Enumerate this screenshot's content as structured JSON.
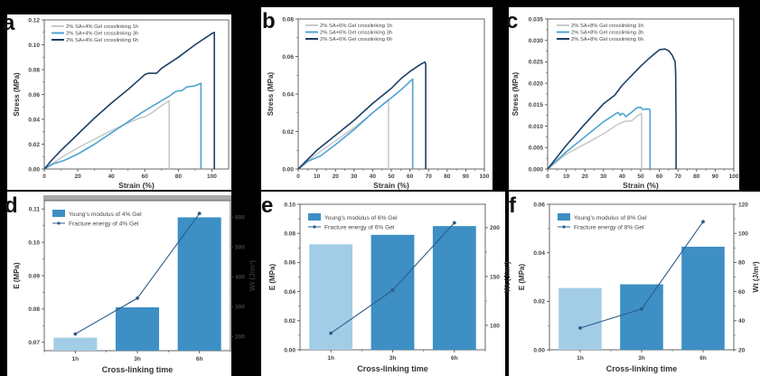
{
  "figure": {
    "panels": [
      "a",
      "b",
      "c",
      "d",
      "e",
      "f"
    ]
  },
  "colors": {
    "h1": "#c8cbcd",
    "h3": "#4ea3d0",
    "h6": "#1e3f66",
    "bar_light": "#a3cde6",
    "bar_dark": "#3d8fc4",
    "wt_line": "#2c5d8a",
    "axis": "#555555"
  },
  "chart_data": [
    {
      "panel": "a",
      "type": "line",
      "xlabel": "Strain (%)",
      "ylabel": "Stress (MPa)",
      "xlim": [
        0,
        110
      ],
      "ylim": [
        0,
        0.12
      ],
      "xticks": [
        0,
        20,
        40,
        60,
        80,
        100
      ],
      "yticks": [
        0.0,
        0.02,
        0.04,
        0.06,
        0.08,
        0.1,
        0.12
      ],
      "ytick_labels": [
        "0.00",
        "0.02",
        "0.04",
        "0.06",
        "0.08",
        "0.10",
        "0.12"
      ],
      "legend": "top-left",
      "series": [
        {
          "name": "2% SA+4% Gel crosslinking 1h",
          "key": "h1",
          "x": [
            0,
            10,
            20,
            30,
            40,
            50,
            57,
            60,
            65,
            70,
            74.5,
            74.5
          ],
          "y": [
            0,
            0.009,
            0.017,
            0.024,
            0.031,
            0.037,
            0.041,
            0.042,
            0.046,
            0.051,
            0.055,
            0
          ]
        },
        {
          "name": "2% SA+4% Gel crosslinking 3h",
          "key": "h3",
          "x": [
            0,
            5,
            12,
            20,
            30,
            40,
            50,
            60,
            70,
            75,
            78,
            80,
            82,
            85,
            90,
            93.5,
            93.5
          ],
          "y": [
            0,
            0.004,
            0.007,
            0.012,
            0.02,
            0.029,
            0.038,
            0.047,
            0.055,
            0.059,
            0.062,
            0.063,
            0.063,
            0.066,
            0.067,
            0.069,
            0
          ]
        },
        {
          "name": "2% SA+4% Gel crosslinking 6h",
          "key": "h6",
          "x": [
            0,
            5,
            10,
            20,
            30,
            40,
            50,
            55,
            60,
            62,
            67,
            70,
            80,
            90,
            100,
            101.5,
            101.5
          ],
          "y": [
            0,
            0.008,
            0.015,
            0.028,
            0.041,
            0.053,
            0.064,
            0.07,
            0.076,
            0.077,
            0.077,
            0.081,
            0.09,
            0.1,
            0.109,
            0.11,
            0
          ]
        }
      ]
    },
    {
      "panel": "b",
      "type": "line",
      "xlabel": "Strain (%)",
      "ylabel": "Stress (MPa)",
      "xlim": [
        0,
        100
      ],
      "ylim": [
        0,
        0.08
      ],
      "xticks": [
        0,
        10,
        20,
        30,
        40,
        50,
        60,
        70,
        80,
        90,
        100
      ],
      "yticks": [
        0.0,
        0.02,
        0.04,
        0.06,
        0.08
      ],
      "ytick_labels": [
        "0.00",
        "0.02",
        "0.04",
        "0.06",
        "0.08"
      ],
      "legend": "top-left",
      "series": [
        {
          "name": "2% SA+6% Gel crosslinking 1h",
          "key": "h1",
          "x": [
            0,
            10,
            20,
            30,
            40,
            48.5,
            48.5
          ],
          "y": [
            0,
            0.008,
            0.015,
            0.022,
            0.03,
            0.037,
            0
          ]
        },
        {
          "name": "2% SA+6% Gel crosslinking 3h",
          "key": "h3",
          "x": [
            0,
            5,
            12,
            20,
            30,
            40,
            50,
            55,
            61.5,
            61.5
          ],
          "y": [
            0,
            0.004,
            0.007,
            0.013,
            0.021,
            0.03,
            0.038,
            0.042,
            0.048,
            0
          ]
        },
        {
          "name": "2% SA+6% Gel crosslinking 6h",
          "key": "h6",
          "x": [
            0,
            10,
            20,
            30,
            40,
            50,
            55,
            60,
            66,
            68,
            68.5,
            68.5
          ],
          "y": [
            0,
            0.01,
            0.018,
            0.026,
            0.035,
            0.043,
            0.048,
            0.052,
            0.056,
            0.057,
            0.056,
            0
          ]
        }
      ]
    },
    {
      "panel": "c",
      "type": "line",
      "xlabel": "Strain (%)",
      "ylabel": "Stress (MPa)",
      "xlim": [
        0,
        100
      ],
      "ylim": [
        0,
        0.035
      ],
      "xticks": [
        0,
        10,
        20,
        30,
        40,
        50,
        60,
        70,
        80,
        90,
        100
      ],
      "yticks": [
        0.0,
        0.005,
        0.01,
        0.015,
        0.02,
        0.025,
        0.03,
        0.035
      ],
      "ytick_labels": [
        "0.000",
        "0.005",
        "0.010",
        "0.015",
        "0.020",
        "0.025",
        "0.030",
        "0.035"
      ],
      "legend": "top-left",
      "series": [
        {
          "name": "2% SA+8% Gel crosslinking 1h",
          "key": "h1",
          "x": [
            0,
            10,
            20,
            30,
            38,
            42,
            45,
            48,
            50.5,
            50.5
          ],
          "y": [
            0,
            0.0035,
            0.0058,
            0.0082,
            0.0105,
            0.0112,
            0.0112,
            0.0123,
            0.013,
            0
          ]
        },
        {
          "name": "2% SA+8% Gel crosslinking 3h",
          "key": "h3",
          "x": [
            0,
            10,
            20,
            30,
            37,
            38,
            39,
            40,
            41,
            42,
            45,
            48,
            50,
            51,
            54,
            55,
            55
          ],
          "y": [
            0,
            0.004,
            0.0075,
            0.011,
            0.013,
            0.0132,
            0.0125,
            0.013,
            0.0128,
            0.0122,
            0.0132,
            0.0143,
            0.0144,
            0.0139,
            0.014,
            0.0139,
            0
          ]
        },
        {
          "name": "2% SA+8% Gel crosslinking 6h",
          "key": "h6",
          "x": [
            0,
            10,
            20,
            30,
            36,
            40,
            50,
            55,
            60,
            63,
            65,
            67,
            68.5,
            68.8,
            69,
            69
          ],
          "y": [
            0,
            0.0055,
            0.0105,
            0.0152,
            0.0172,
            0.0195,
            0.024,
            0.026,
            0.0278,
            0.028,
            0.0276,
            0.0265,
            0.025,
            0.022,
            0.01,
            0
          ]
        }
      ]
    },
    {
      "panel": "d",
      "type": "bar",
      "xlabel": "Cross-linking time",
      "ylabel": "E  (MPa)",
      "y2label": "Wt (J/m³)",
      "categories": [
        "1h",
        "3h",
        "6h"
      ],
      "ylim": [
        0.0675,
        0.1125
      ],
      "yticks": [
        0.07,
        0.08,
        0.09,
        0.1,
        0.11
      ],
      "ytick_labels": [
        "0.07",
        "0.08",
        "0.09",
        "0.10",
        "0.11"
      ],
      "y2lim": [
        152,
        655
      ],
      "y2ticks": [
        200,
        300,
        400,
        500,
        600
      ],
      "legend": "top-left",
      "series": [
        {
          "name": "Young's modulus of 4% Gel",
          "type": "bar",
          "values": [
            0.0714,
            0.0805,
            0.1075
          ]
        },
        {
          "name": "Fracture energy of 4% Gel",
          "type": "line",
          "axis": "y2",
          "values": [
            208,
            328,
            612
          ]
        }
      ]
    },
    {
      "panel": "e",
      "type": "bar",
      "xlabel": "Cross-linking time",
      "ylabel": "E  (MPa)",
      "y2label": "Wt (J/m³)",
      "categories": [
        "1h",
        "3h",
        "6h"
      ],
      "ylim": [
        0,
        0.1
      ],
      "yticks": [
        0.0,
        0.02,
        0.04,
        0.06,
        0.08,
        0.1
      ],
      "ytick_labels": [
        "0.00",
        "0.02",
        "0.04",
        "0.06",
        "0.08",
        "0.10"
      ],
      "y2lim": [
        75,
        224
      ],
      "y2ticks": [
        100,
        150,
        200
      ],
      "legend": "top-left",
      "series": [
        {
          "name": "Young's modulus of 6% Gel",
          "type": "bar",
          "values": [
            0.0725,
            0.079,
            0.085
          ]
        },
        {
          "name": "Fracture energy of 6% Gel",
          "type": "line",
          "axis": "y2",
          "values": [
            92,
            136,
            205
          ]
        }
      ]
    },
    {
      "panel": "f",
      "type": "bar",
      "xlabel": "Cross-linking time",
      "ylabel": "E  (MPa)",
      "y2label": "Wt (J/m³)",
      "categories": [
        "1h",
        "3h",
        "6h"
      ],
      "ylim": [
        0,
        0.06
      ],
      "yticks": [
        0.0,
        0.02,
        0.04,
        0.06
      ],
      "ytick_labels": [
        "0.00",
        "0.02",
        "0.04",
        "0.06"
      ],
      "y2lim": [
        20,
        120
      ],
      "y2ticks": [
        20,
        40,
        60,
        80,
        100,
        120
      ],
      "legend": "top-left",
      "series": [
        {
          "name": "Young's modulus of 8% Gel",
          "type": "bar",
          "values": [
            0.0255,
            0.027,
            0.0425
          ]
        },
        {
          "name": "Fracture energy of 8% Gel",
          "type": "line",
          "axis": "y2",
          "values": [
            35,
            48,
            108
          ]
        }
      ]
    }
  ]
}
